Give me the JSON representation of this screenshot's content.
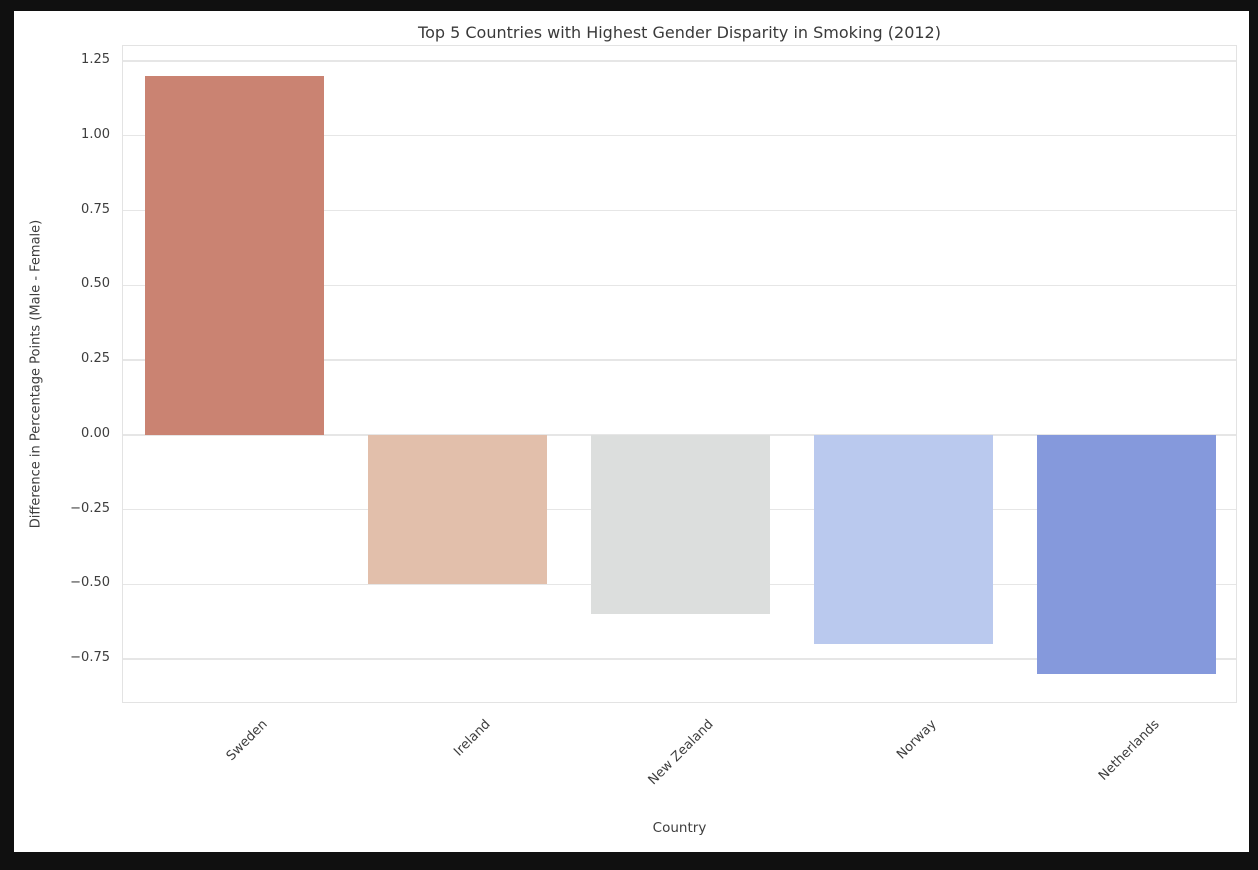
{
  "chart_data": {
    "type": "bar",
    "title": "Top 5 Countries with Highest Gender Disparity in Smoking (2012)",
    "xlabel": "Country",
    "ylabel": "Difference in Percentage Points (Male - Female)",
    "categories": [
      "Sweden",
      "Ireland",
      "New Zealand",
      "Norway",
      "Netherlands"
    ],
    "values": [
      1.2,
      -0.5,
      -0.6,
      -0.7,
      -0.8
    ],
    "bar_colors": [
      "#ca8372",
      "#e2bfab",
      "#dcdedd",
      "#bac9ee",
      "#8599dc"
    ],
    "ylim": [
      -0.9,
      1.3
    ],
    "yticks": [
      1.25,
      1.0,
      0.75,
      0.5,
      0.25,
      0.0,
      -0.25,
      -0.5,
      -0.75
    ],
    "ytick_labels": [
      "1.25",
      "1.00",
      "0.75",
      "0.50",
      "0.25",
      "0.00",
      "−0.25",
      "−0.50",
      "−0.75"
    ],
    "grid": true,
    "legend": null,
    "colors": {
      "grid": "#e6e6e6",
      "spine": "#e3e3e3",
      "plot_background": "#ffffff",
      "figure_background": "#ffffff",
      "canvas_border": "#101010",
      "title_text": "#3a3a3a",
      "tick_text": "#3d3d3d"
    }
  }
}
